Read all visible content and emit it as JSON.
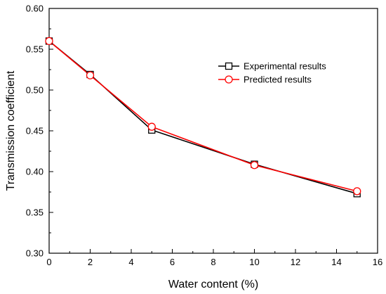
{
  "chart_data": {
    "type": "line",
    "title": "",
    "xlabel": "Water content (%)",
    "ylabel": "Transmission coefficient",
    "xlim": [
      0,
      16
    ],
    "ylim": [
      0.3,
      0.6
    ],
    "x_ticks": [
      0,
      2,
      4,
      6,
      8,
      10,
      12,
      14,
      16
    ],
    "x_tick_labels": [
      "0",
      "2",
      "4",
      "6",
      "8",
      "10",
      "12",
      "14",
      "16"
    ],
    "y_ticks": [
      0.3,
      0.35,
      0.4,
      0.45,
      0.5,
      0.55,
      0.6
    ],
    "y_tick_labels": [
      "0.30",
      "0.35",
      "0.40",
      "0.45",
      "0.50",
      "0.55",
      "0.60"
    ],
    "grid": false,
    "legend_position": "top-right",
    "series": [
      {
        "name": "Experimental results",
        "color": "#000000",
        "marker": "square",
        "x": [
          0,
          2,
          5,
          10,
          15
        ],
        "y": [
          0.56,
          0.519,
          0.451,
          0.409,
          0.373
        ]
      },
      {
        "name": "Predicted results",
        "color": "#ff0000",
        "marker": "circle",
        "x": [
          0,
          2,
          5,
          10,
          15
        ],
        "y": [
          0.56,
          0.518,
          0.455,
          0.408,
          0.376
        ]
      }
    ]
  }
}
